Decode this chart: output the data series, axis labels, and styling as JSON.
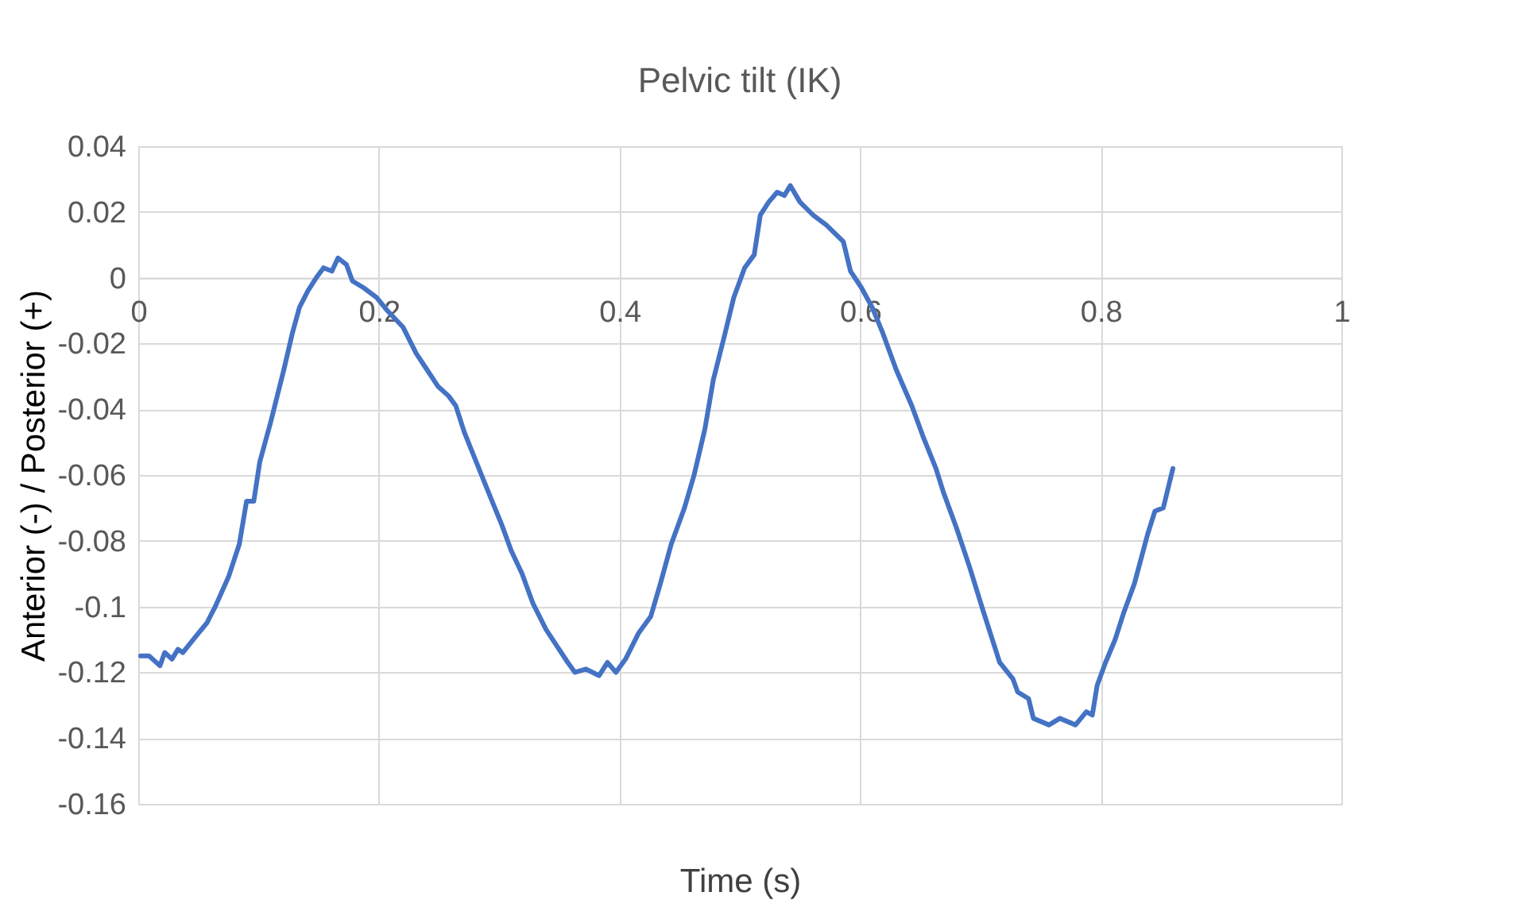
{
  "chart_data": {
    "type": "line",
    "title": "Pelvic tilt (IK)",
    "xlabel": "Time (s)",
    "ylabel": "Anterior (-) / Posterior (+)",
    "xlim": [
      0,
      1
    ],
    "xticks": [
      0,
      0.2,
      0.4,
      0.6,
      0.8,
      1
    ],
    "ylim": [
      -0.16,
      0.04
    ],
    "yticks": [
      -0.16,
      -0.14,
      -0.12,
      -0.1,
      -0.08,
      -0.06,
      -0.04,
      -0.02,
      0,
      0.02,
      0.04
    ],
    "grid": true,
    "marker": "none",
    "line_style": "solid",
    "series": [
      {
        "color": "#4472c4",
        "x": [
          0.002,
          0.009,
          0.018,
          0.022,
          0.028,
          0.033,
          0.037,
          0.048,
          0.057,
          0.064,
          0.075,
          0.084,
          0.09,
          0.096,
          0.101,
          0.11,
          0.121,
          0.128,
          0.134,
          0.141,
          0.148,
          0.154,
          0.161,
          0.166,
          0.173,
          0.178,
          0.187,
          0.198,
          0.207,
          0.22,
          0.231,
          0.24,
          0.249,
          0.258,
          0.264,
          0.271,
          0.282,
          0.293,
          0.302,
          0.31,
          0.319,
          0.328,
          0.339,
          0.348,
          0.357,
          0.363,
          0.372,
          0.383,
          0.39,
          0.397,
          0.405,
          0.416,
          0.426,
          0.434,
          0.443,
          0.454,
          0.462,
          0.471,
          0.478,
          0.487,
          0.495,
          0.504,
          0.512,
          0.517,
          0.524,
          0.531,
          0.537,
          0.542,
          0.55,
          0.561,
          0.572,
          0.586,
          0.592,
          0.601,
          0.61,
          0.619,
          0.63,
          0.643,
          0.652,
          0.663,
          0.669,
          0.68,
          0.691,
          0.702,
          0.709,
          0.716,
          0.727,
          0.731,
          0.74,
          0.744,
          0.757,
          0.766,
          0.779,
          0.788,
          0.793,
          0.797,
          0.804,
          0.812,
          0.819,
          0.828,
          0.839,
          0.845,
          0.852,
          0.86
        ],
        "values": [
          -0.115,
          -0.115,
          -0.118,
          -0.114,
          -0.116,
          -0.113,
          -0.114,
          -0.109,
          -0.105,
          -0.1,
          -0.091,
          -0.081,
          -0.068,
          -0.068,
          -0.056,
          -0.044,
          -0.028,
          -0.017,
          -0.009,
          -0.004,
          0.0,
          0.003,
          0.002,
          0.006,
          0.004,
          -0.001,
          -0.003,
          -0.006,
          -0.01,
          -0.015,
          -0.023,
          -0.028,
          -0.033,
          -0.036,
          -0.039,
          -0.047,
          -0.057,
          -0.067,
          -0.075,
          -0.083,
          -0.09,
          -0.099,
          -0.107,
          -0.112,
          -0.117,
          -0.12,
          -0.119,
          -0.121,
          -0.117,
          -0.12,
          -0.116,
          -0.108,
          -0.103,
          -0.093,
          -0.081,
          -0.07,
          -0.06,
          -0.046,
          -0.031,
          -0.018,
          -0.006,
          0.003,
          0.007,
          0.019,
          0.023,
          0.026,
          0.025,
          0.028,
          0.023,
          0.019,
          0.016,
          0.011,
          0.002,
          -0.003,
          -0.009,
          -0.017,
          -0.028,
          -0.039,
          -0.048,
          -0.058,
          -0.065,
          -0.076,
          -0.088,
          -0.101,
          -0.109,
          -0.117,
          -0.122,
          -0.126,
          -0.128,
          -0.134,
          -0.136,
          -0.134,
          -0.136,
          -0.132,
          -0.133,
          -0.124,
          -0.117,
          -0.11,
          -0.102,
          -0.093,
          -0.078,
          -0.071,
          -0.07,
          -0.058
        ]
      }
    ]
  }
}
